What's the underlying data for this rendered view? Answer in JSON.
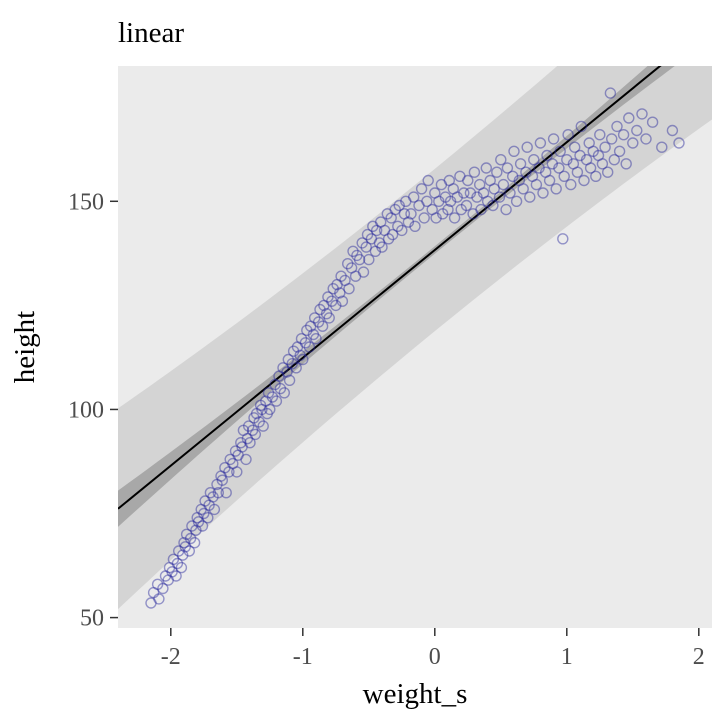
{
  "chart_data": {
    "type": "scatter",
    "title": "linear",
    "xlabel": "weight_s",
    "ylabel": "height",
    "xlim": [
      -2.4,
      2.1
    ],
    "ylim": [
      47.5,
      182.5
    ],
    "x_ticks": [
      -2,
      -1,
      0,
      1,
      2
    ],
    "y_ticks": [
      50,
      100,
      150
    ],
    "grid": false,
    "legend": "none",
    "panel_bg": "#ebebeb",
    "outer_band": {
      "color": "#d4d4d4",
      "base_halfwidth": 19.5,
      "quad": 0.8
    },
    "inner_band": {
      "color": "#a8a8a8",
      "base_halfwidth": 0.9,
      "quad": 0.6
    },
    "regression": {
      "intercept": 138.3,
      "slope": 25.9,
      "line_color": "#000000",
      "line_width": 2
    },
    "point_style": {
      "stroke": "#26269b",
      "opacity": 0.45,
      "radius": 5,
      "stroke_width": 1.4
    },
    "points": [
      [
        -2.15,
        53.5
      ],
      [
        -2.13,
        56
      ],
      [
        -2.1,
        58
      ],
      [
        -2.09,
        54.5
      ],
      [
        -2.06,
        57
      ],
      [
        -2.04,
        60
      ],
      [
        -2.02,
        59
      ],
      [
        -2.01,
        62
      ],
      [
        -1.99,
        61
      ],
      [
        -1.98,
        64
      ],
      [
        -1.96,
        60
      ],
      [
        -1.95,
        63
      ],
      [
        -1.94,
        66
      ],
      [
        -1.92,
        62
      ],
      [
        -1.91,
        65
      ],
      [
        -1.9,
        68
      ],
      [
        -1.89,
        67
      ],
      [
        -1.88,
        70
      ],
      [
        -1.86,
        66
      ],
      [
        -1.85,
        69
      ],
      [
        -1.84,
        72
      ],
      [
        -1.82,
        68
      ],
      [
        -1.81,
        71
      ],
      [
        -1.8,
        74
      ],
      [
        -1.79,
        73
      ],
      [
        -1.77,
        76
      ],
      [
        -1.76,
        72
      ],
      [
        -1.75,
        75
      ],
      [
        -1.74,
        78
      ],
      [
        -1.72,
        74
      ],
      [
        -1.71,
        77
      ],
      [
        -1.7,
        80
      ],
      [
        -1.68,
        79
      ],
      [
        -1.67,
        76
      ],
      [
        -1.65,
        82
      ],
      [
        -1.64,
        80
      ],
      [
        -1.62,
        84
      ],
      [
        -1.61,
        83
      ],
      [
        -1.59,
        86
      ],
      [
        -1.58,
        80
      ],
      [
        -1.56,
        85
      ],
      [
        -1.55,
        88
      ],
      [
        -1.53,
        87
      ],
      [
        -1.51,
        90
      ],
      [
        -1.5,
        85
      ],
      [
        -1.49,
        89
      ],
      [
        -1.47,
        92
      ],
      [
        -1.46,
        91
      ],
      [
        -1.45,
        95
      ],
      [
        -1.43,
        88
      ],
      [
        -1.42,
        93
      ],
      [
        -1.41,
        96
      ],
      [
        -1.4,
        92
      ],
      [
        -1.38,
        95
      ],
      [
        -1.37,
        98
      ],
      [
        -1.36,
        94
      ],
      [
        -1.35,
        99
      ],
      [
        -1.33,
        97
      ],
      [
        -1.32,
        101
      ],
      [
        -1.31,
        100
      ],
      [
        -1.3,
        96
      ],
      [
        -1.28,
        102
      ],
      [
        -1.27,
        99
      ],
      [
        -1.26,
        104
      ],
      [
        -1.25,
        100
      ],
      [
        -1.23,
        103
      ],
      [
        -1.21,
        106
      ],
      [
        -1.2,
        102
      ],
      [
        -1.18,
        108
      ],
      [
        -1.17,
        105
      ],
      [
        -1.15,
        110
      ],
      [
        -1.14,
        104
      ],
      [
        -1.12,
        109
      ],
      [
        -1.11,
        112
      ],
      [
        -1.1,
        107
      ],
      [
        -1.08,
        111
      ],
      [
        -1.07,
        114
      ],
      [
        -1.05,
        110
      ],
      [
        -1.04,
        115
      ],
      [
        -1.02,
        113
      ],
      [
        -1.01,
        117
      ],
      [
        -1.0,
        112
      ],
      [
        -0.98,
        116
      ],
      [
        -0.97,
        119
      ],
      [
        -0.95,
        115
      ],
      [
        -0.94,
        120
      ],
      [
        -0.92,
        118
      ],
      [
        -0.91,
        122
      ],
      [
        -0.9,
        117
      ],
      [
        -0.88,
        121
      ],
      [
        -0.87,
        124
      ],
      [
        -0.85,
        120
      ],
      [
        -0.84,
        125
      ],
      [
        -0.82,
        123
      ],
      [
        -0.81,
        127
      ],
      [
        -0.8,
        122
      ],
      [
        -0.78,
        126
      ],
      [
        -0.77,
        129
      ],
      [
        -0.75,
        125
      ],
      [
        -0.74,
        130
      ],
      [
        -0.72,
        128
      ],
      [
        -0.71,
        132
      ],
      [
        -0.7,
        126
      ],
      [
        -0.68,
        131
      ],
      [
        -0.66,
        135
      ],
      [
        -0.65,
        129
      ],
      [
        -0.63,
        134
      ],
      [
        -0.62,
        138
      ],
      [
        -0.6,
        132
      ],
      [
        -0.59,
        137
      ],
      [
        -0.57,
        136
      ],
      [
        -0.55,
        140
      ],
      [
        -0.54,
        133
      ],
      [
        -0.52,
        139
      ],
      [
        -0.51,
        142
      ],
      [
        -0.5,
        136
      ],
      [
        -0.48,
        141
      ],
      [
        -0.47,
        144
      ],
      [
        -0.45,
        138
      ],
      [
        -0.44,
        143
      ],
      [
        -0.42,
        140
      ],
      [
        -0.41,
        145
      ],
      [
        -0.4,
        139
      ],
      [
        -0.38,
        143
      ],
      [
        -0.36,
        147
      ],
      [
        -0.35,
        141
      ],
      [
        -0.33,
        146
      ],
      [
        -0.32,
        142
      ],
      [
        -0.3,
        148
      ],
      [
        -0.28,
        144
      ],
      [
        -0.27,
        149
      ],
      [
        -0.25,
        143
      ],
      [
        -0.23,
        147
      ],
      [
        -0.22,
        150
      ],
      [
        -0.2,
        145
      ],
      [
        -0.18,
        147
      ],
      [
        -0.16,
        151
      ],
      [
        -0.15,
        144
      ],
      [
        -0.12,
        149
      ],
      [
        -0.1,
        153
      ],
      [
        -0.08,
        146
      ],
      [
        -0.06,
        150
      ],
      [
        -0.05,
        155
      ],
      [
        -0.02,
        148
      ],
      [
        0.0,
        152
      ],
      [
        0.01,
        146
      ],
      [
        0.03,
        150
      ],
      [
        0.05,
        154
      ],
      [
        0.06,
        147
      ],
      [
        0.08,
        151
      ],
      [
        0.1,
        148
      ],
      [
        0.11,
        155
      ],
      [
        0.12,
        150
      ],
      [
        0.14,
        153
      ],
      [
        0.15,
        146
      ],
      [
        0.17,
        151
      ],
      [
        0.19,
        156
      ],
      [
        0.2,
        148
      ],
      [
        0.22,
        152
      ],
      [
        0.24,
        149
      ],
      [
        0.25,
        155
      ],
      [
        0.27,
        152
      ],
      [
        0.29,
        147
      ],
      [
        0.3,
        157
      ],
      [
        0.32,
        151
      ],
      [
        0.34,
        154
      ],
      [
        0.35,
        148
      ],
      [
        0.37,
        152
      ],
      [
        0.39,
        158
      ],
      [
        0.4,
        150
      ],
      [
        0.42,
        155
      ],
      [
        0.44,
        149
      ],
      [
        0.45,
        153
      ],
      [
        0.47,
        157
      ],
      [
        0.49,
        151
      ],
      [
        0.5,
        160
      ],
      [
        0.52,
        154
      ],
      [
        0.54,
        148
      ],
      [
        0.55,
        158
      ],
      [
        0.57,
        152
      ],
      [
        0.59,
        156
      ],
      [
        0.6,
        162
      ],
      [
        0.62,
        150
      ],
      [
        0.64,
        155
      ],
      [
        0.65,
        159
      ],
      [
        0.67,
        153
      ],
      [
        0.69,
        157
      ],
      [
        0.7,
        163
      ],
      [
        0.72,
        151
      ],
      [
        0.74,
        156
      ],
      [
        0.75,
        160
      ],
      [
        0.77,
        154
      ],
      [
        0.79,
        158
      ],
      [
        0.8,
        164
      ],
      [
        0.82,
        152
      ],
      [
        0.84,
        157
      ],
      [
        0.85,
        161
      ],
      [
        0.87,
        155
      ],
      [
        0.89,
        159
      ],
      [
        0.9,
        165
      ],
      [
        0.92,
        153
      ],
      [
        0.94,
        158
      ],
      [
        0.95,
        162
      ],
      [
        0.97,
        141
      ],
      [
        0.98,
        156
      ],
      [
        1.0,
        160
      ],
      [
        1.01,
        166
      ],
      [
        1.03,
        154
      ],
      [
        1.05,
        159
      ],
      [
        1.06,
        163
      ],
      [
        1.08,
        157
      ],
      [
        1.1,
        161
      ],
      [
        1.11,
        168
      ],
      [
        1.13,
        155
      ],
      [
        1.15,
        160
      ],
      [
        1.17,
        164
      ],
      [
        1.18,
        158
      ],
      [
        1.2,
        162
      ],
      [
        1.22,
        156
      ],
      [
        1.24,
        161
      ],
      [
        1.25,
        166
      ],
      [
        1.27,
        159
      ],
      [
        1.29,
        163
      ],
      [
        1.31,
        157
      ],
      [
        1.33,
        176
      ],
      [
        1.34,
        165
      ],
      [
        1.36,
        160
      ],
      [
        1.38,
        168
      ],
      [
        1.4,
        162
      ],
      [
        1.43,
        166
      ],
      [
        1.45,
        159
      ],
      [
        1.47,
        170
      ],
      [
        1.5,
        164
      ],
      [
        1.53,
        167
      ],
      [
        1.57,
        171
      ],
      [
        1.6,
        165
      ],
      [
        1.65,
        169
      ],
      [
        1.72,
        163
      ],
      [
        1.8,
        167
      ],
      [
        1.85,
        164
      ]
    ]
  }
}
